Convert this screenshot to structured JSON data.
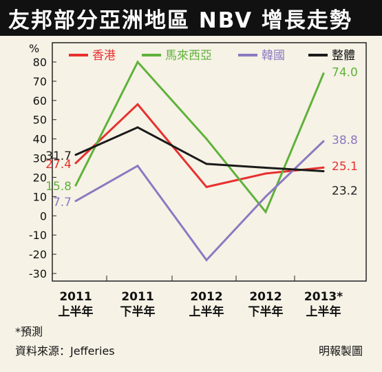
{
  "chart_data": {
    "type": "line",
    "title": "友邦部分亞洲地區 NBV 增長走勢",
    "ylabel": "%",
    "ylim": [
      -35,
      85
    ],
    "yticks": [
      80,
      70,
      60,
      50,
      40,
      30,
      20,
      10,
      0,
      -10,
      -20,
      -30
    ],
    "categories": [
      [
        "2011",
        "上半年"
      ],
      [
        "2011",
        "下半年"
      ],
      [
        "2012",
        "上半年"
      ],
      [
        "2012",
        "下半年"
      ],
      [
        "2013*",
        "上半年"
      ]
    ],
    "series": [
      {
        "name": "香港",
        "color": "#e8302f",
        "values": [
          27.4,
          58,
          15,
          22,
          25.1
        ],
        "labels": [
          {
            "i": 0,
            "text": "27.4",
            "side": "left"
          },
          {
            "i": 4,
            "text": "25.1",
            "side": "right"
          }
        ]
      },
      {
        "name": "馬來西亞",
        "color": "#5fb23a",
        "values": [
          15.8,
          80,
          40,
          2,
          74.0
        ],
        "labels": [
          {
            "i": 0,
            "text": "15.8",
            "side": "left"
          },
          {
            "i": 4,
            "text": "74.0",
            "side": "right"
          }
        ]
      },
      {
        "name": "韓國",
        "color": "#8c79c0",
        "values": [
          7.7,
          26,
          -23,
          10,
          38.8
        ],
        "labels": [
          {
            "i": 0,
            "text": "7.7",
            "side": "left"
          },
          {
            "i": 4,
            "text": "38.8",
            "side": "right"
          }
        ]
      },
      {
        "name": "整體",
        "color": "#1a1a1a",
        "values": [
          31.7,
          46,
          27,
          25,
          23.2
        ],
        "labels": [
          {
            "i": 0,
            "text": "31.7",
            "side": "left"
          },
          {
            "i": 4,
            "text": "23.2",
            "side": "right-below"
          }
        ]
      }
    ],
    "grid": false,
    "legend": "top"
  },
  "footnote": "*預測",
  "source": "資料來源：Jefferies",
  "credit": "明報製圖"
}
